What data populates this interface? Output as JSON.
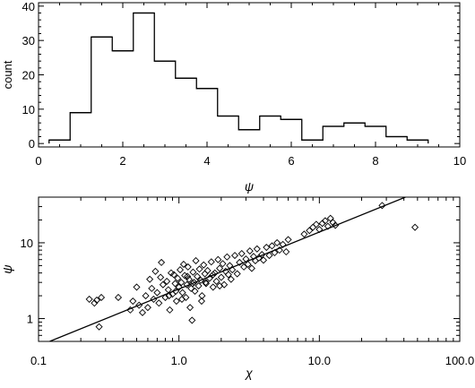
{
  "chart_data": [
    {
      "type": "histogram",
      "xlabel": "ψ",
      "ylabel": "count",
      "xlim": [
        0,
        10
      ],
      "ylim": [
        -1,
        41
      ],
      "x_ticks": [
        0,
        2,
        4,
        6,
        8,
        10
      ],
      "x_tick_labels": [
        "0",
        "2",
        "4",
        "6",
        "8",
        "10"
      ],
      "y_ticks": [
        0,
        10,
        20,
        30,
        40
      ],
      "y_tick_labels": [
        "0",
        "10",
        "20",
        "30",
        "40"
      ],
      "bin_edges": [
        0.25,
        0.75,
        1.25,
        1.75,
        2.25,
        2.75,
        3.25,
        3.75,
        4.25,
        4.75,
        5.25,
        5.75,
        6.25,
        6.75,
        7.25,
        7.75,
        8.25,
        8.75,
        9.25
      ],
      "counts": [
        1,
        9,
        31,
        27,
        38,
        24,
        19,
        16,
        8,
        4,
        8,
        7,
        1,
        5,
        6,
        5,
        2,
        1
      ],
      "grid": false
    },
    {
      "type": "scatter",
      "xlabel": "χ",
      "ylabel": "ψ",
      "xscale": "log",
      "yscale": "log",
      "xlim": [
        0.1,
        100
      ],
      "ylim": [
        0.5,
        40
      ],
      "x_ticks": [
        0.1,
        1,
        10,
        100
      ],
      "x_tick_labels": [
        "0.1",
        "1.0",
        "10.0",
        "100.0"
      ],
      "y_ticks": [
        1,
        10
      ],
      "y_tick_labels": [
        "1",
        "10"
      ],
      "marker": "diamond",
      "grid": false,
      "fit_line": {
        "x": [
          0.12,
          48
        ],
        "y": [
          0.5,
          45
        ]
      },
      "points": [
        [
          0.23,
          1.8
        ],
        [
          0.25,
          1.6
        ],
        [
          0.27,
          0.78
        ],
        [
          0.28,
          1.9
        ],
        [
          0.26,
          1.75
        ],
        [
          0.37,
          1.9
        ],
        [
          0.45,
          1.3
        ],
        [
          0.47,
          1.7
        ],
        [
          0.5,
          2.6
        ],
        [
          0.52,
          1.5
        ],
        [
          0.55,
          1.2
        ],
        [
          0.58,
          2.0
        ],
        [
          0.6,
          1.4
        ],
        [
          0.62,
          3.3
        ],
        [
          0.64,
          2.5
        ],
        [
          0.66,
          1.8
        ],
        [
          0.68,
          4.2
        ],
        [
          0.7,
          2.2
        ],
        [
          0.72,
          1.6
        ],
        [
          0.74,
          3.5
        ],
        [
          0.75,
          5.5
        ],
        [
          0.77,
          2.8
        ],
        [
          0.8,
          1.9
        ],
        [
          0.82,
          3.1
        ],
        [
          0.84,
          2.4
        ],
        [
          0.86,
          1.3
        ],
        [
          0.88,
          4.0
        ],
        [
          0.9,
          2.1
        ],
        [
          0.92,
          3.8
        ],
        [
          0.94,
          2.9
        ],
        [
          0.96,
          1.7
        ],
        [
          0.98,
          3.4
        ],
        [
          1.0,
          2.6
        ],
        [
          1.02,
          4.4
        ],
        [
          1.04,
          3.0
        ],
        [
          1.06,
          2.2
        ],
        [
          1.08,
          5.2
        ],
        [
          1.1,
          3.7
        ],
        [
          1.12,
          1.9
        ],
        [
          1.14,
          2.8
        ],
        [
          1.16,
          4.8
        ],
        [
          1.18,
          3.3
        ],
        [
          1.2,
          1.4
        ],
        [
          1.22,
          2.5
        ],
        [
          1.24,
          0.95
        ],
        [
          1.26,
          4.1
        ],
        [
          1.28,
          3.0
        ],
        [
          1.3,
          2.3
        ],
        [
          1.32,
          5.8
        ],
        [
          1.35,
          3.6
        ],
        [
          1.38,
          2.7
        ],
        [
          1.4,
          4.5
        ],
        [
          1.43,
          3.2
        ],
        [
          1.46,
          2.0
        ],
        [
          1.5,
          5.1
        ],
        [
          1.53,
          3.9
        ],
        [
          1.56,
          2.9
        ],
        [
          1.6,
          4.3
        ],
        [
          1.65,
          3.4
        ],
        [
          1.7,
          5.6
        ],
        [
          1.75,
          2.6
        ],
        [
          1.8,
          4.0
        ],
        [
          1.85,
          3.1
        ],
        [
          1.9,
          6.0
        ],
        [
          1.95,
          4.6
        ],
        [
          2.0,
          3.5
        ],
        [
          2.05,
          5.3
        ],
        [
          2.1,
          2.8
        ],
        [
          2.15,
          4.2
        ],
        [
          2.2,
          6.5
        ],
        [
          2.25,
          3.8
        ],
        [
          2.3,
          5.0
        ],
        [
          2.4,
          4.4
        ],
        [
          2.5,
          6.8
        ],
        [
          2.6,
          3.9
        ],
        [
          2.7,
          5.5
        ],
        [
          2.8,
          7.2
        ],
        [
          2.9,
          4.8
        ],
        [
          3.0,
          6.1
        ],
        [
          3.1,
          5.2
        ],
        [
          3.2,
          7.8
        ],
        [
          3.3,
          4.6
        ],
        [
          3.4,
          6.6
        ],
        [
          3.5,
          5.8
        ],
        [
          3.6,
          8.3
        ],
        [
          3.7,
          6.3
        ],
        [
          3.9,
          7.0
        ],
        [
          4.0,
          5.9
        ],
        [
          4.2,
          8.7
        ],
        [
          4.4,
          6.8
        ],
        [
          4.6,
          9.1
        ],
        [
          4.8,
          7.4
        ],
        [
          5.0,
          10.0
        ],
        [
          5.2,
          8.0
        ],
        [
          5.5,
          9.5
        ],
        [
          5.8,
          7.6
        ],
        [
          6.0,
          11.0
        ],
        [
          9.0,
          16.0
        ],
        [
          9.5,
          17.5
        ],
        [
          10.0,
          15.0
        ],
        [
          10.5,
          18.0
        ],
        [
          11.0,
          19.5
        ],
        [
          11.5,
          16.5
        ],
        [
          12.0,
          21.0
        ],
        [
          12.5,
          18.5
        ],
        [
          13.0,
          17.0
        ],
        [
          8.5,
          14.5
        ],
        [
          7.8,
          13.0
        ],
        [
          28.0,
          31.0
        ],
        [
          48.0,
          16.0
        ],
        [
          0.85,
          2.0
        ],
        [
          0.95,
          2.3
        ],
        [
          1.05,
          1.8
        ],
        [
          1.15,
          3.6
        ],
        [
          1.25,
          2.9
        ],
        [
          1.45,
          1.7
        ],
        [
          1.55,
          3.0
        ],
        [
          1.75,
          3.8
        ],
        [
          1.95,
          2.7
        ],
        [
          2.35,
          3.3
        ]
      ]
    }
  ]
}
